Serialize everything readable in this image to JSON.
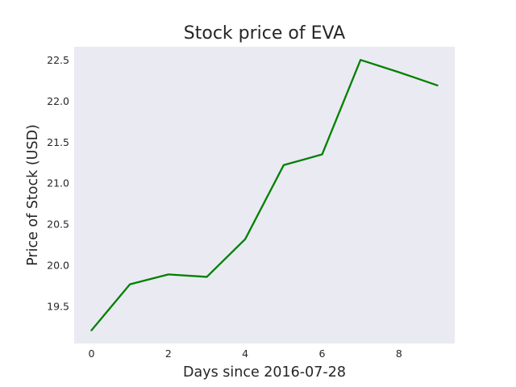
{
  "chart_data": {
    "type": "line",
    "title": "Stock price of EVA",
    "xlabel": "Days since 2016-07-28",
    "ylabel": "Price of Stock (USD)",
    "x": [
      0,
      1,
      2,
      3,
      4,
      5,
      6,
      7,
      8,
      9
    ],
    "series": [
      {
        "values": [
          19.22,
          19.78,
          19.9,
          19.87,
          20.33,
          21.23,
          21.36,
          22.51,
          22.36,
          22.2
        ],
        "color": "#008000"
      }
    ],
    "xlim": [
      -0.45,
      9.45
    ],
    "ylim": [
      19.06,
      22.67
    ],
    "xticks": [
      0,
      2,
      4,
      6,
      8
    ],
    "yticks": [
      19.5,
      20.0,
      20.5,
      21.0,
      21.5,
      22.0,
      22.5
    ],
    "xtick_labels": [
      "0",
      "2",
      "4",
      "6",
      "8"
    ],
    "ytick_labels": [
      "19.5",
      "20.0",
      "20.5",
      "21.0",
      "21.5",
      "22.0",
      "22.5"
    ],
    "plot_background": "#eaeaf2",
    "grid": false,
    "legend": "none"
  }
}
